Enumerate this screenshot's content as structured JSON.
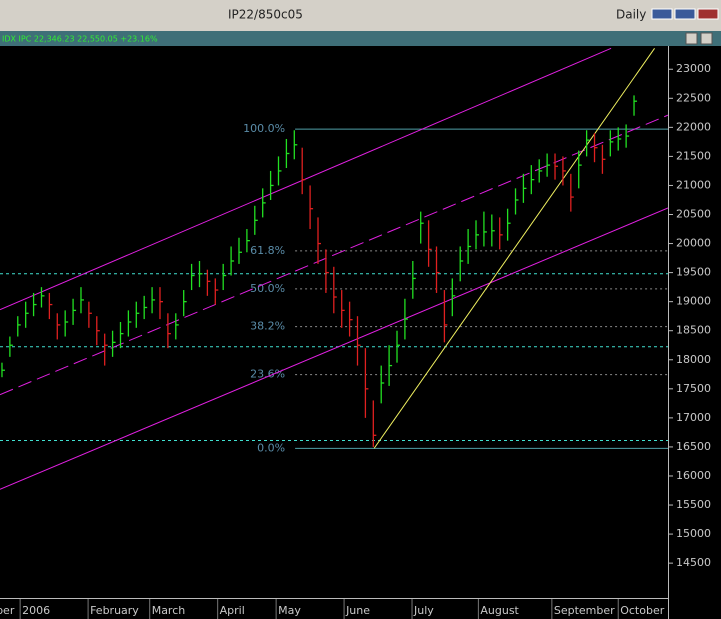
{
  "header": {
    "title": "IP22/850c05",
    "period": "Daily",
    "quote": "IDX IPC 22,346.23 22,550.05 +23.16%"
  },
  "chart_data": {
    "type": "ohlc",
    "xlim": [
      -0.25,
      84.3
    ],
    "ylim": [
      13900,
      23400
    ],
    "yticks": [
      14500,
      15000,
      15500,
      16000,
      16500,
      17000,
      17500,
      18000,
      18500,
      19000,
      19500,
      20000,
      20500,
      21000,
      21500,
      22000,
      22500,
      23000
    ],
    "xticks": [
      {
        "value": -1,
        "label": "ber"
      },
      {
        "value": 2.3,
        "label": "2006"
      },
      {
        "value": 10.9,
        "label": "February"
      },
      {
        "value": 18.7,
        "label": "March"
      },
      {
        "value": 27.3,
        "label": "April"
      },
      {
        "value": 34.7,
        "label": "May"
      },
      {
        "value": 43.3,
        "label": "June"
      },
      {
        "value": 51.9,
        "label": "July"
      },
      {
        "value": 60.3,
        "label": "August"
      },
      {
        "value": 69.6,
        "label": "September"
      },
      {
        "value": 78,
        "label": "October"
      }
    ],
    "up_color": "#22e022",
    "down_color": "#e02020",
    "high": [
      17950,
      18400,
      18750,
      19000,
      19150,
      19250,
      19150,
      18800,
      18850,
      19050,
      19250,
      19000,
      18750,
      18450,
      18500,
      18650,
      18850,
      19000,
      19100,
      19250,
      19250,
      18800,
      18800,
      19200,
      19650,
      19700,
      19550,
      19400,
      19650,
      19950,
      20100,
      20250,
      20650,
      20950,
      21250,
      21500,
      21800,
      21950,
      21650,
      21000,
      20450,
      19900,
      19600,
      19200,
      19000,
      18750,
      18200,
      17300,
      17900,
      18250,
      18500,
      19050,
      19700,
      20550,
      20400,
      19950,
      19200,
      19400,
      19950,
      20250,
      20400,
      20550,
      20500,
      20450,
      20600,
      20950,
      21200,
      21350,
      21450,
      21550,
      21550,
      21500,
      21200,
      21600,
      21950,
      21900,
      21700,
      21950,
      22000,
      22050,
      22550
    ],
    "low": [
      17700,
      18050,
      18400,
      18550,
      18750,
      18900,
      18700,
      18350,
      18400,
      18600,
      18800,
      18550,
      18250,
      17900,
      18050,
      18200,
      18400,
      18550,
      18700,
      18800,
      18700,
      18200,
      18350,
      18750,
      19200,
      19250,
      19100,
      18950,
      19200,
      19450,
      19650,
      19850,
      20150,
      20450,
      20750,
      21000,
      21300,
      21450,
      20850,
      20250,
      19650,
      19150,
      18800,
      18550,
      18400,
      17900,
      17000,
      16500,
      17250,
      17550,
      17950,
      18350,
      19050,
      20000,
      19600,
      19150,
      18300,
      18750,
      19350,
      19650,
      19900,
      19950,
      19950,
      19900,
      20050,
      20500,
      20700,
      20850,
      21050,
      21150,
      21100,
      21000,
      20550,
      20950,
      21500,
      21400,
      21200,
      21500,
      21600,
      21650,
      22200
    ],
    "close": [
      17820,
      18250,
      18600,
      18800,
      18950,
      19100,
      18950,
      18600,
      18650,
      18850,
      19030,
      18800,
      18500,
      18250,
      18300,
      18450,
      18650,
      18800,
      18900,
      19030,
      19000,
      18450,
      18600,
      19000,
      19450,
      19480,
      19350,
      19200,
      19450,
      19700,
      19850,
      20050,
      20400,
      20700,
      21000,
      21250,
      21550,
      21700,
      21100,
      20600,
      20000,
      19500,
      19080,
      18850,
      18690,
      18250,
      17500,
      16700,
      17600,
      17900,
      18250,
      18700,
      19400,
      20350,
      19900,
      19500,
      18600,
      19100,
      19700,
      19950,
      20150,
      20200,
      20220,
      20150,
      20350,
      20750,
      20950,
      21100,
      21250,
      21350,
      21330,
      21250,
      20800,
      21350,
      21780,
      21650,
      21450,
      21750,
      21800,
      21850,
      22450
    ],
    "fib": {
      "x_start": 37.1,
      "label_color": "#5a8ca8",
      "line_color": "#8a8a8a",
      "edge_color": "#4fa0a8",
      "levels": [
        {
          "label": "100.0%",
          "value": 21970
        },
        {
          "label": "61.8%",
          "value": 19875
        },
        {
          "label": "50.0%",
          "value": 19220
        },
        {
          "label": "38.2%",
          "value": 18570
        },
        {
          "label": "23.6%",
          "value": 17745
        },
        {
          "label": "0.0%",
          "value": 16475
        }
      ]
    },
    "hlines": {
      "color": "#40e0d0",
      "values": [
        19480,
        18225,
        16610
      ]
    },
    "trendlines": [
      {
        "color": "#e020e0",
        "style": "solid",
        "x": [
          -0.25,
          77.1
        ],
        "y": [
          18862,
          23360
        ]
      },
      {
        "color": "#e020e0",
        "style": "dashed",
        "x": [
          -0.25,
          84.3
        ],
        "y": [
          17400,
          22210
        ]
      },
      {
        "color": "#e020e0",
        "style": "solid",
        "x": [
          -0.25,
          84.3
        ],
        "y": [
          15770,
          20613
        ]
      },
      {
        "color": "#f0f060",
        "style": "solid",
        "x": [
          47.1,
          82.6
        ],
        "y": [
          16475,
          23360
        ]
      }
    ]
  }
}
